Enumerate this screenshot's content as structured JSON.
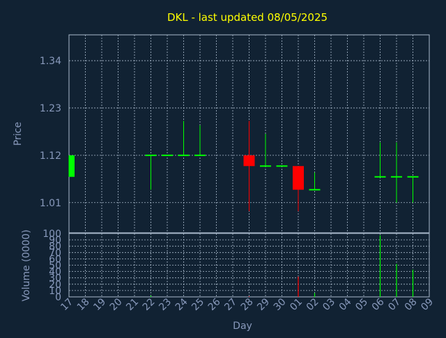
{
  "colors": {
    "background": "#112233",
    "text": "#8899bb",
    "title": "#ffff00",
    "grid": "#aabbcc",
    "axis": "#aabbcc",
    "up": "#00ff00",
    "down": "#ff0000",
    "zero": "#00ff00"
  },
  "chart_data": [
    {
      "type": "candlestick",
      "title": "DKL - last updated 08/05/2025",
      "ylabel": "Price",
      "xlabel": "",
      "ylim": [
        0.94,
        1.4
      ],
      "yticks": [
        1.01,
        1.12,
        1.23,
        1.34
      ],
      "ytick_labels": [
        "1.01",
        "1.12",
        "1.23",
        "1.34"
      ],
      "grid": true,
      "categories": [
        "17",
        "18",
        "19",
        "20",
        "21",
        "22",
        "23",
        "24",
        "25",
        "26",
        "27",
        "28",
        "29",
        "30",
        "01",
        "02",
        "03",
        "04",
        "05",
        "06",
        "07",
        "08",
        "09"
      ],
      "candles": [
        {
          "x": "17",
          "open": 1.07,
          "high": 1.12,
          "low": 1.07,
          "close": 1.12
        },
        {
          "x": "22",
          "open": 1.12,
          "high": 1.12,
          "low": 1.04,
          "close": 1.12
        },
        {
          "x": "23",
          "open": 1.12,
          "high": 1.12,
          "low": 1.12,
          "close": 1.12
        },
        {
          "x": "24",
          "open": 1.12,
          "high": 1.2,
          "low": 1.12,
          "close": 1.12
        },
        {
          "x": "25",
          "open": 1.12,
          "high": 1.19,
          "low": 1.12,
          "close": 1.12
        },
        {
          "x": "28",
          "open": 1.12,
          "high": 1.2,
          "low": 0.99,
          "close": 1.095
        },
        {
          "x": "29",
          "open": 1.095,
          "high": 1.17,
          "low": 1.095,
          "close": 1.095
        },
        {
          "x": "30",
          "open": 1.095,
          "high": 1.095,
          "low": 1.095,
          "close": 1.095
        },
        {
          "x": "01",
          "open": 1.095,
          "high": 1.095,
          "low": 0.99,
          "close": 1.04
        },
        {
          "x": "02",
          "open": 1.04,
          "high": 1.08,
          "low": 1.04,
          "close": 1.04
        },
        {
          "x": "06",
          "open": 1.07,
          "high": 1.15,
          "low": 1.07,
          "close": 1.07
        },
        {
          "x": "07",
          "open": 1.07,
          "high": 1.15,
          "low": 1.01,
          "close": 1.07
        },
        {
          "x": "08",
          "open": 1.07,
          "high": 1.07,
          "low": 1.01,
          "close": 1.07
        }
      ]
    },
    {
      "type": "bar",
      "title": "",
      "xlabel": "Day",
      "ylabel": "Volume (0000)",
      "ylim": [
        0,
        100
      ],
      "yticks": [
        0,
        10,
        20,
        30,
        40,
        50,
        60,
        70,
        80,
        90,
        100
      ],
      "ytick_labels": [
        "0",
        "10",
        "20",
        "30",
        "40",
        "50",
        "60",
        "70",
        "80",
        "90",
        "100"
      ],
      "grid": true,
      "categories": [
        "17",
        "18",
        "19",
        "20",
        "21",
        "22",
        "23",
        "24",
        "25",
        "26",
        "27",
        "28",
        "29",
        "30",
        "01",
        "02",
        "03",
        "04",
        "05",
        "06",
        "07",
        "08",
        "09"
      ],
      "bars": [
        {
          "x": "22",
          "value": 2,
          "direction": "up"
        },
        {
          "x": "28",
          "value": 1,
          "direction": "down"
        },
        {
          "x": "01",
          "value": 32,
          "direction": "down"
        },
        {
          "x": "02",
          "value": 6,
          "direction": "up"
        },
        {
          "x": "06",
          "value": 97,
          "direction": "up"
        },
        {
          "x": "07",
          "value": 52,
          "direction": "up"
        },
        {
          "x": "08",
          "value": 43,
          "direction": "up"
        }
      ]
    }
  ]
}
